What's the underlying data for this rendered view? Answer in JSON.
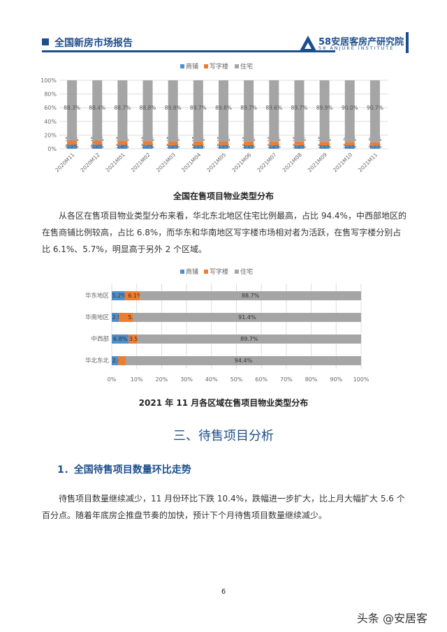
{
  "header": {
    "title": "全国新房市场报告",
    "logo_cn": "58安居客房产研究院",
    "logo_en": "58 ANJUKE INSTITUTE"
  },
  "legend": [
    "商铺",
    "写字楼",
    "住宅"
  ],
  "colors": {
    "shop": "#4f8fcc",
    "office": "#ed7d31",
    "residential": "#a5a5a5",
    "brand": "#1d4e8c"
  },
  "chart_data": [
    {
      "type": "bar",
      "stacked": true,
      "orientation": "vertical",
      "title": "全国在售项目物业类型分布",
      "categories": [
        "2020M11",
        "2020M12",
        "2021M01",
        "2021M02",
        "2021M03",
        "2021M04",
        "2021M05",
        "2021M06",
        "2021M07",
        "2021M08",
        "2021M09",
        "2021M10",
        "2021M11"
      ],
      "series": [
        {
          "name": "商铺",
          "values": [
            6.1,
            6.0,
            5.8,
            5.7,
            5.2,
            5.1,
            5.1,
            5.1,
            5.2,
            5.2,
            5.1,
            5.1,
            4.7
          ]
        },
        {
          "name": "写字楼",
          "values": [
            5.7,
            5.6,
            5.5,
            5.4,
            5.0,
            5.2,
            5.1,
            5.2,
            5.3,
            5.1,
            5.0,
            4.9,
            4.6
          ]
        },
        {
          "name": "住宅",
          "values": [
            88.3,
            88.4,
            88.7,
            88.8,
            89.8,
            89.7,
            89.8,
            89.7,
            89.6,
            89.7,
            89.9,
            90.0,
            90.7
          ]
        }
      ],
      "yticks": [
        "0%",
        "20%",
        "40%",
        "60%",
        "80%",
        "100%"
      ],
      "ylim": [
        0,
        100
      ],
      "legend": "top",
      "grid": true
    },
    {
      "type": "bar",
      "stacked": true,
      "orientation": "horizontal",
      "title": "2021 年 11 月各区域在售项目物业类型分布",
      "categories": [
        "华东地区",
        "华南地区",
        "中西部",
        "华北东北"
      ],
      "series": [
        {
          "name": "商铺",
          "values": [
            5.2,
            2.9,
            6.8,
            2.6
          ]
        },
        {
          "name": "写字楼",
          "values": [
            6.1,
            5.7,
            3.5,
            3.0
          ]
        },
        {
          "name": "住宅",
          "values": [
            88.7,
            91.4,
            89.7,
            94.4
          ]
        }
      ],
      "xticks": [
        "0%",
        "10%",
        "20%",
        "30%",
        "40%",
        "50%",
        "60%",
        "70%",
        "80%",
        "90%",
        "100%"
      ],
      "xlim": [
        0,
        100
      ],
      "legend": "top",
      "grid": true
    }
  ],
  "para1": "从各区在售项目物业类型分布来看，华北东北地区住宅比例最高，占比 94.4%，中西部地区的在售商铺比例较高，占比 6.8%，而华东和华南地区写字楼市场相对者为活跃，在售写字楼分别占比 6.1%、5.7%，明显高于另外 2 个区域。",
  "section3": "三、待售项目分析",
  "sub1": "1．全国待售项目数量环比走势",
  "para2": "待售项目数量继续减少，11 月份环比下跌 10.4%，跌幅进一步扩大，比上月大幅扩大 5.6 个百分点。随着年底房企推盘节奏的加快，预计下个月待售项目数量继续减少。",
  "page_number": "6",
  "watermark": "头条 @安居客"
}
